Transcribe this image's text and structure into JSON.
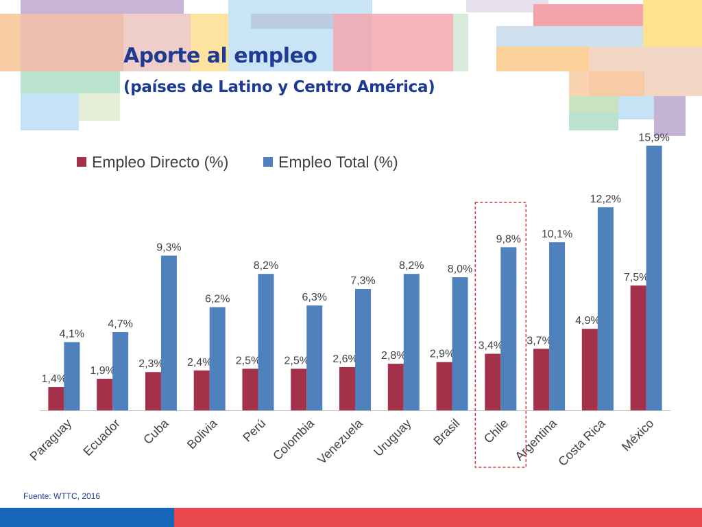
{
  "slide": {
    "title": "Aporte al empleo",
    "subtitle": "(países de Latino y Centro  América)",
    "source": "Fuente: WTTC, 2016"
  },
  "chart_data": {
    "type": "bar",
    "categories": [
      "Paraguay",
      "Ecuador",
      "Cuba",
      "Bolivia",
      "Perú",
      "Colombia",
      "Venezuela",
      "Uruguay",
      "Brasil",
      "Chile",
      "Argentina",
      "Costa Rica",
      "México"
    ],
    "series": [
      {
        "name": "Empleo Directo (%)",
        "color": "#a4314a",
        "values": [
          1.4,
          1.9,
          2.3,
          2.4,
          2.5,
          2.5,
          2.6,
          2.8,
          2.9,
          3.4,
          3.7,
          4.9,
          7.5
        ],
        "labels": [
          "1,4%",
          "1,9%",
          "2,3%",
          "2,4%",
          "2,5%",
          "2,5%",
          "2,6%",
          "2,8%",
          "2,9%",
          "3,4%",
          "3,7%",
          "4,9%",
          "7,5%"
        ]
      },
      {
        "name": "Empleo Total (%)",
        "color": "#4f81bd",
        "values": [
          4.1,
          4.7,
          9.3,
          6.2,
          8.2,
          6.3,
          7.3,
          8.2,
          8.0,
          9.8,
          10.1,
          12.2,
          15.9
        ],
        "labels": [
          "4,1%",
          "4,7%",
          "9,3%",
          "6,2%",
          "8,2%",
          "6,3%",
          "7,3%",
          "8,2%",
          "8,0%",
          "9,8%",
          "10,1%",
          "12,2%",
          "15,9%"
        ]
      }
    ],
    "ylim": [
      0,
      16
    ],
    "highlight": "Chile",
    "legend_position": "top-left"
  }
}
